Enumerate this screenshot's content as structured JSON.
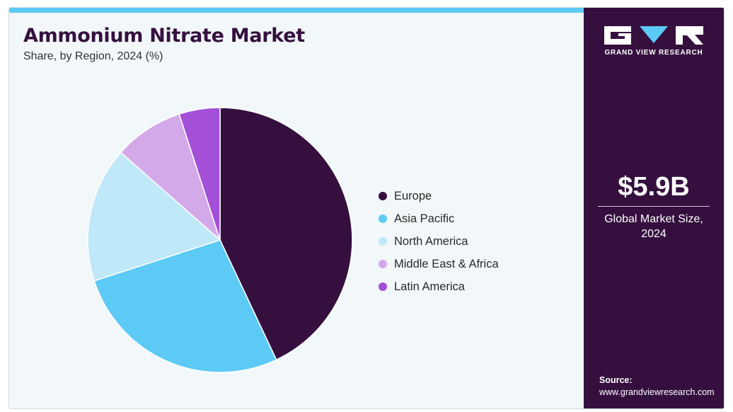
{
  "header": {
    "title": "Ammonium Nitrate Market",
    "subtitle": "Share, by Region, 2024 (%)"
  },
  "brand": {
    "name": "GRAND VIEW RESEARCH",
    "icon": "gvr-logo-icon"
  },
  "market": {
    "value": "$5.9B",
    "caption_line1": "Global Market Size,",
    "caption_line2": "2024"
  },
  "source": {
    "label": "Source:",
    "url": "www.grandviewresearch.com"
  },
  "colors": {
    "top_bar": "#5ccaf5",
    "sidebar": "#35103f",
    "background": "#f2f7f9"
  },
  "chart_data": {
    "type": "pie",
    "labels": [
      "Europe",
      "Asia Pacific",
      "North America",
      "Middle East & Africa",
      "Latin America"
    ],
    "values": [
      43,
      27,
      16.5,
      8.5,
      5
    ],
    "colors": [
      "#35103f",
      "#5ccaf5",
      "#bfe8f8",
      "#d4a9ea",
      "#a44fd8"
    ],
    "start_angle_deg": 0,
    "direction": "clockwise",
    "legend_position": "right"
  }
}
